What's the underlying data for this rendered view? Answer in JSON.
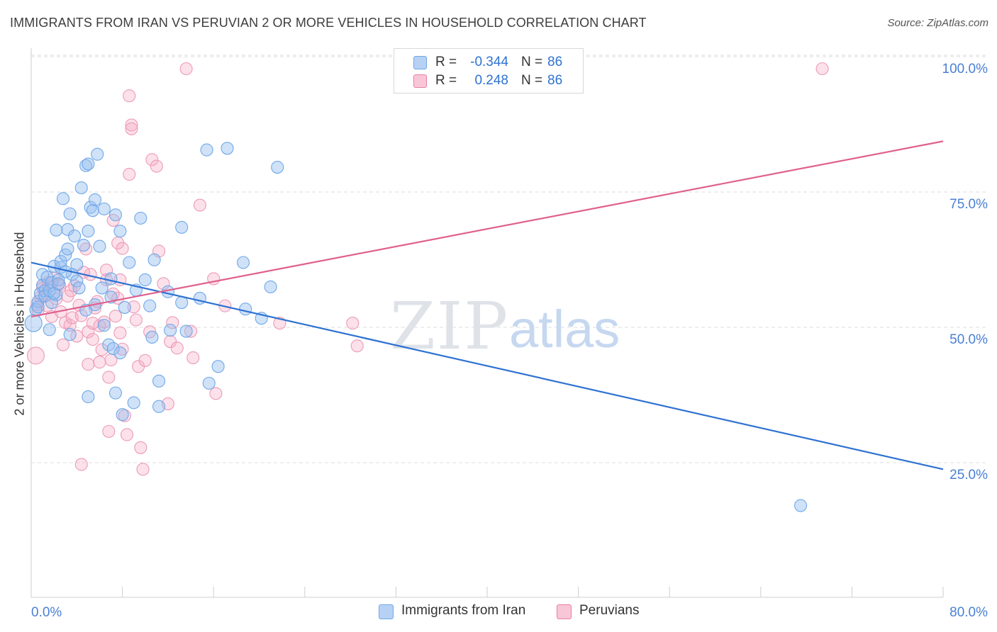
{
  "header": {
    "title": "IMMIGRANTS FROM IRAN VS PERUVIAN 2 OR MORE VEHICLES IN HOUSEHOLD CORRELATION CHART",
    "source": "Source: ZipAtlas.com"
  },
  "watermark": {
    "zip": "ZIP",
    "atlas": "atlas"
  },
  "legend": {
    "r_label": "R =",
    "n_label": "N =",
    "series": [
      {
        "r": "-0.344",
        "n": "86",
        "color": "#6fa8e8",
        "fill": "#b7d1f5"
      },
      {
        "r": "0.248",
        "n": "86",
        "color": "#e87fa3",
        "fill": "#f9c6d7"
      }
    ]
  },
  "bottom_legend": [
    "Immigrants from Iran",
    "Peruvians"
  ],
  "colors": {
    "blue_line": "#2e72d2",
    "pink_line": "#e0608e",
    "tick_text": "#4a7fd4",
    "grid": "#dddddd"
  },
  "chart_data": {
    "type": "scatter",
    "xlabel": "",
    "ylabel": "2 or more Vehicles in Household",
    "xlim": [
      0,
      80
    ],
    "ylim": [
      0,
      102
    ],
    "x_tick_labels": [
      "0.0%",
      "80.0%"
    ],
    "y_ticks": [
      25,
      50,
      75,
      100
    ],
    "y_tick_labels": [
      "25.0%",
      "50.0%",
      "75.0%",
      "100.0%"
    ],
    "grid": true,
    "legend_position": "top-center",
    "series": [
      {
        "name": "Immigrants from Iran",
        "color": "#6fa8e8",
        "trend": {
          "x": [
            0,
            80
          ],
          "y": [
            64.2,
            26.0
          ]
        },
        "points": [
          [
            0.2,
            53.0
          ],
          [
            0.4,
            55.5
          ],
          [
            0.6,
            57.0
          ],
          [
            0.8,
            58.5
          ],
          [
            1.0,
            60.0
          ],
          [
            1.2,
            59.0
          ],
          [
            1.0,
            62.0
          ],
          [
            1.4,
            61.5
          ],
          [
            1.6,
            51.8
          ],
          [
            1.8,
            60.5
          ],
          [
            2.0,
            63.5
          ],
          [
            2.2,
            58.2
          ],
          [
            2.4,
            61.0
          ],
          [
            2.6,
            63.3
          ],
          [
            2.2,
            70.2
          ],
          [
            2.6,
            64.4
          ],
          [
            2.8,
            76.0
          ],
          [
            3.0,
            65.6
          ],
          [
            3.2,
            66.7
          ],
          [
            3.4,
            73.2
          ],
          [
            3.2,
            70.3
          ],
          [
            3.6,
            62.0
          ],
          [
            3.4,
            50.9
          ],
          [
            3.8,
            69.1
          ],
          [
            4.0,
            60.8
          ],
          [
            4.2,
            59.5
          ],
          [
            4.0,
            63.8
          ],
          [
            4.4,
            78.0
          ],
          [
            4.6,
            67.4
          ],
          [
            4.8,
            82.1
          ],
          [
            5.0,
            82.4
          ],
          [
            5.0,
            70.0
          ],
          [
            4.8,
            55.4
          ],
          [
            5.2,
            74.4
          ],
          [
            5.0,
            39.4
          ],
          [
            5.4,
            73.8
          ],
          [
            5.6,
            56.4
          ],
          [
            5.6,
            75.8
          ],
          [
            5.8,
            84.2
          ],
          [
            6.0,
            67.2
          ],
          [
            6.2,
            59.5
          ],
          [
            6.4,
            52.6
          ],
          [
            6.4,
            74.1
          ],
          [
            6.8,
            49.0
          ],
          [
            7.0,
            57.8
          ],
          [
            7.0,
            61.2
          ],
          [
            7.2,
            48.3
          ],
          [
            7.4,
            73.0
          ],
          [
            7.4,
            40.1
          ],
          [
            7.8,
            47.5
          ],
          [
            7.8,
            70.0
          ],
          [
            8.0,
            36.1
          ],
          [
            8.2,
            55.9
          ],
          [
            8.6,
            64.2
          ],
          [
            9.0,
            38.3
          ],
          [
            9.2,
            59.1
          ],
          [
            9.6,
            72.4
          ],
          [
            10.0,
            61.0
          ],
          [
            10.4,
            56.2
          ],
          [
            10.6,
            50.4
          ],
          [
            10.8,
            64.7
          ],
          [
            11.2,
            37.6
          ],
          [
            11.2,
            42.3
          ],
          [
            12.0,
            58.8
          ],
          [
            12.2,
            51.7
          ],
          [
            13.2,
            56.8
          ],
          [
            13.2,
            70.7
          ],
          [
            13.6,
            51.5
          ],
          [
            14.8,
            57.6
          ],
          [
            15.4,
            85.0
          ],
          [
            15.6,
            41.9
          ],
          [
            16.4,
            45.0
          ],
          [
            17.2,
            85.3
          ],
          [
            18.6,
            64.2
          ],
          [
            18.8,
            55.6
          ],
          [
            20.2,
            53.9
          ],
          [
            21.0,
            59.7
          ],
          [
            21.6,
            81.8
          ],
          [
            67.5,
            19.3
          ],
          [
            0.6,
            56.0
          ],
          [
            1.2,
            58.0
          ],
          [
            1.6,
            59.0
          ],
          [
            1.8,
            56.8
          ],
          [
            2.0,
            58.5
          ],
          [
            2.4,
            60.3
          ],
          [
            3.0,
            62.5
          ]
        ]
      },
      {
        "name": "Peruvians",
        "color": "#e87fa3",
        "trend": {
          "x": [
            0,
            80
          ],
          "y": [
            54.2,
            86.6
          ]
        },
        "points": [
          [
            0.4,
            47.0
          ],
          [
            0.6,
            55.4
          ],
          [
            0.8,
            57.8
          ],
          [
            1.0,
            60.0
          ],
          [
            1.2,
            58.1
          ],
          [
            1.4,
            56.2
          ],
          [
            1.6,
            59.8
          ],
          [
            1.8,
            54.2
          ],
          [
            2.0,
            61.3
          ],
          [
            2.2,
            57.5
          ],
          [
            2.4,
            60.2
          ],
          [
            2.6,
            55.1
          ],
          [
            2.8,
            49.0
          ],
          [
            3.0,
            53.1
          ],
          [
            3.2,
            58.0
          ],
          [
            3.4,
            52.6
          ],
          [
            3.6,
            54.0
          ],
          [
            3.8,
            59.9
          ],
          [
            4.0,
            50.6
          ],
          [
            4.2,
            56.3
          ],
          [
            4.4,
            54.4
          ],
          [
            4.4,
            26.9
          ],
          [
            4.8,
            66.7
          ],
          [
            5.0,
            51.4
          ],
          [
            5.0,
            45.4
          ],
          [
            5.2,
            62.0
          ],
          [
            5.4,
            50.0
          ],
          [
            5.6,
            55.8
          ],
          [
            6.0,
            52.5
          ],
          [
            6.2,
            48.1
          ],
          [
            6.4,
            53.2
          ],
          [
            6.8,
            33.0
          ],
          [
            6.8,
            43.0
          ],
          [
            7.0,
            46.2
          ],
          [
            7.2,
            72.0
          ],
          [
            7.4,
            54.3
          ],
          [
            7.6,
            57.6
          ],
          [
            7.8,
            51.2
          ],
          [
            8.0,
            48.2
          ],
          [
            8.2,
            35.9
          ],
          [
            8.4,
            32.4
          ],
          [
            8.6,
            80.5
          ],
          [
            8.6,
            95.0
          ],
          [
            8.8,
            89.6
          ],
          [
            8.8,
            88.9
          ],
          [
            9.2,
            53.6
          ],
          [
            9.4,
            45.0
          ],
          [
            9.6,
            30.0
          ],
          [
            9.8,
            26.0
          ],
          [
            10.0,
            46.1
          ],
          [
            10.4,
            51.4
          ],
          [
            10.6,
            83.2
          ],
          [
            11.0,
            82.0
          ],
          [
            11.2,
            66.3
          ],
          [
            11.6,
            60.3
          ],
          [
            12.0,
            38.1
          ],
          [
            12.2,
            49.6
          ],
          [
            12.4,
            53.1
          ],
          [
            12.8,
            48.4
          ],
          [
            13.6,
            100.0
          ],
          [
            14.0,
            51.5
          ],
          [
            14.2,
            46.6
          ],
          [
            14.8,
            74.8
          ],
          [
            16.0,
            61.2
          ],
          [
            16.2,
            40.0
          ],
          [
            17.0,
            56.2
          ],
          [
            21.8,
            53.0
          ],
          [
            28.2,
            53.0
          ],
          [
            28.6,
            48.8
          ],
          [
            69.4,
            100.0
          ],
          [
            0.5,
            56.4
          ],
          [
            1.0,
            59.5
          ],
          [
            1.5,
            60.5
          ],
          [
            2.5,
            60.0
          ],
          [
            3.5,
            59.0
          ],
          [
            5.8,
            57.0
          ],
          [
            6.6,
            62.8
          ],
          [
            7.6,
            67.8
          ],
          [
            8.0,
            66.8
          ],
          [
            6.0,
            45.8
          ],
          [
            7.2,
            58.4
          ],
          [
            4.6,
            62.4
          ],
          [
            5.4,
            53.0
          ],
          [
            9.0,
            56.0
          ],
          [
            6.6,
            61.0
          ],
          [
            7.8,
            61.0
          ]
        ]
      }
    ]
  }
}
